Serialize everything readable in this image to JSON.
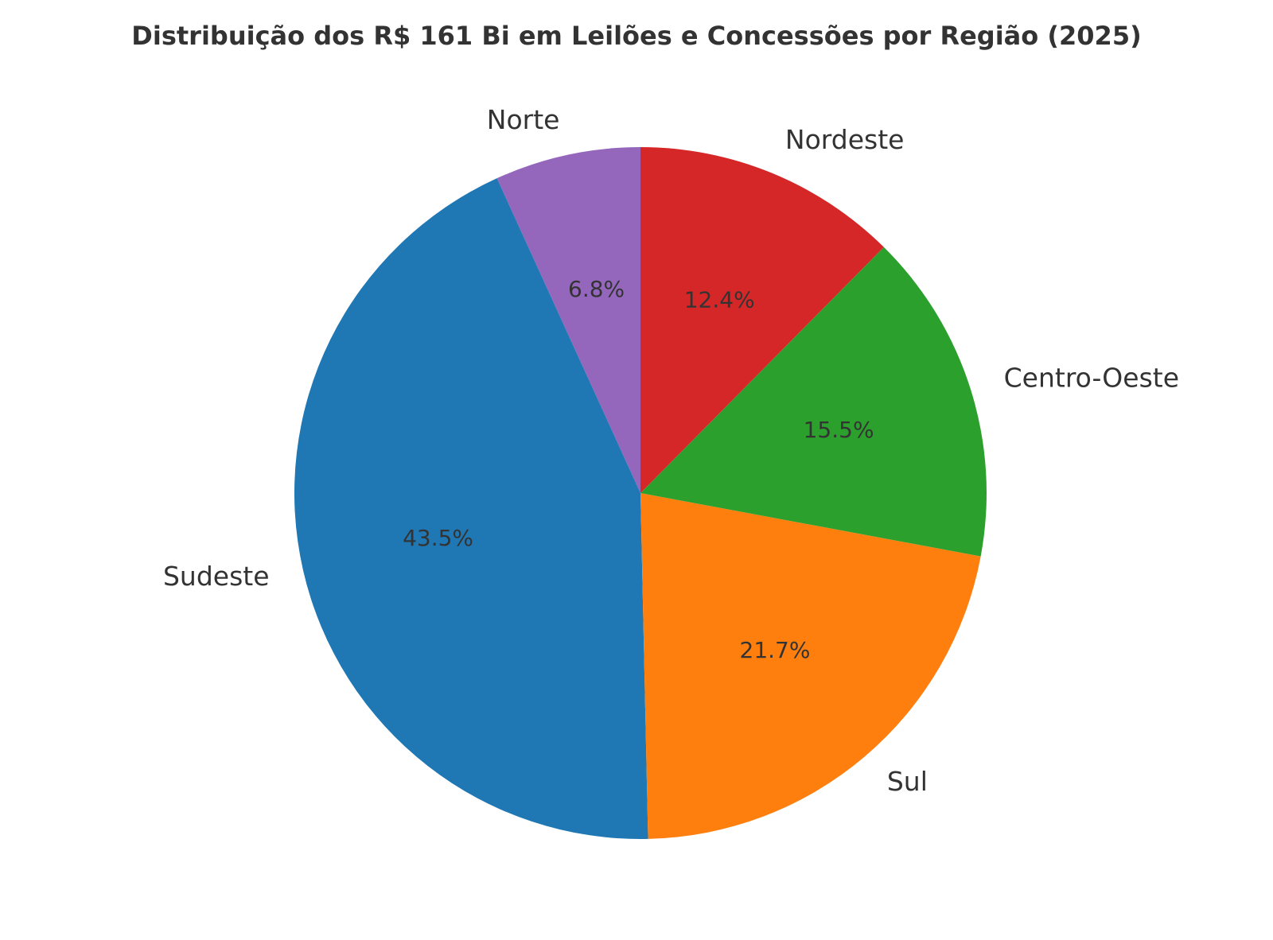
{
  "chart_data": {
    "type": "pie",
    "title": "Distribuição dos R$ 161 Bi em Leilões e Concessões por Região (2025)",
    "start_angle_deg": 90,
    "direction": "counterclockwise",
    "slices": [
      {
        "label": "Norte",
        "value": 6.8,
        "pct_label": "6.8%",
        "color": "#9467bd"
      },
      {
        "label": "Sudeste",
        "value": 43.5,
        "pct_label": "43.5%",
        "color": "#1f77b4"
      },
      {
        "label": "Sul",
        "value": 21.7,
        "pct_label": "21.7%",
        "color": "#ff7f0e"
      },
      {
        "label": "Centro-Oeste",
        "value": 15.5,
        "pct_label": "15.5%",
        "color": "#2ca02c"
      },
      {
        "label": "Nordeste",
        "value": 12.4,
        "pct_label": "12.4%",
        "color": "#d62728"
      }
    ],
    "legend": "none",
    "grid": false
  }
}
